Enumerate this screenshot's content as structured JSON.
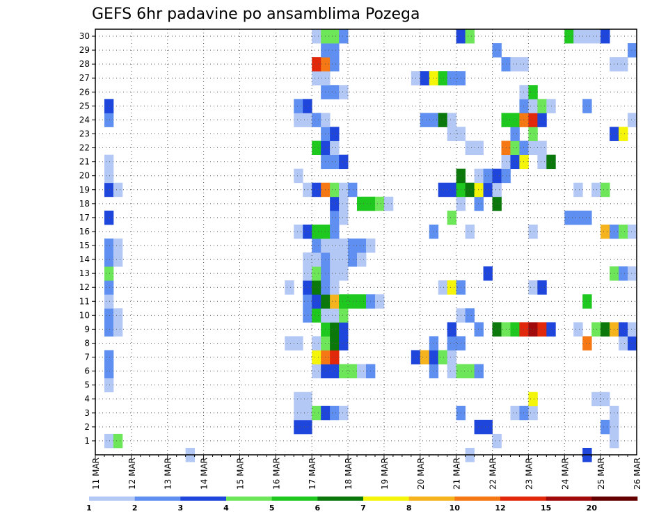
{
  "chart_data": {
    "type": "heatmap",
    "title": "GEFS 6hr padavine po ansamblima Pozega",
    "xlabel": "",
    "ylabel": "",
    "x_start": "11 MAR 00Z",
    "x_end": "26 MAR 00Z",
    "x_step_hours": 6,
    "x_ticks": [
      "11 MAR",
      "12 MAR",
      "13 MAR",
      "14 MAR",
      "15 MAR",
      "16 MAR",
      "17 MAR",
      "18 MAR",
      "19 MAR",
      "20 MAR",
      "21 MAR",
      "22 MAR",
      "23 MAR",
      "24 MAR",
      "25 MAR",
      "26 MAR"
    ],
    "y_ticks": [
      "1",
      "2",
      "3",
      "4",
      "5",
      "6",
      "7",
      "8",
      "9",
      "10",
      "11",
      "12",
      "13",
      "14",
      "15",
      "16",
      "17",
      "18",
      "19",
      "20",
      "21",
      "22",
      "23",
      "24",
      "25",
      "26",
      "27",
      "28",
      "29",
      "30"
    ],
    "members_range": [
      0,
      30
    ],
    "grid": true,
    "legend": {
      "placement": "bottom",
      "levels": [
        "1",
        "2",
        "3",
        "4",
        "5",
        "6",
        "7",
        "8",
        "10",
        "12",
        "15",
        "20"
      ],
      "colors": [
        "#b4c8f5",
        "#5f8ff0",
        "#1e46dc",
        "#6ee65a",
        "#1ec81e",
        "#0a780a",
        "#f5f50a",
        "#f5b41e",
        "#f57814",
        "#e1280a",
        "#a00a0a",
        "#640000"
      ]
    },
    "cells": [
      [
        0,
        10,
        1
      ],
      [
        0,
        41,
        1
      ],
      [
        0,
        54,
        3
      ],
      [
        1,
        1,
        1
      ],
      [
        1,
        2,
        4
      ],
      [
        1,
        44,
        1
      ],
      [
        1,
        57,
        1
      ],
      [
        2,
        22,
        3
      ],
      [
        2,
        23,
        3
      ],
      [
        2,
        42,
        3
      ],
      [
        2,
        43,
        3
      ],
      [
        2,
        56,
        2
      ],
      [
        2,
        57,
        1
      ],
      [
        3,
        22,
        1
      ],
      [
        3,
        23,
        1
      ],
      [
        3,
        24,
        4
      ],
      [
        3,
        25,
        3
      ],
      [
        3,
        26,
        2
      ],
      [
        3,
        27,
        1
      ],
      [
        3,
        40,
        2
      ],
      [
        3,
        46,
        1
      ],
      [
        3,
        47,
        2
      ],
      [
        3,
        48,
        1
      ],
      [
        3,
        57,
        1
      ],
      [
        4,
        22,
        1
      ],
      [
        4,
        23,
        1
      ],
      [
        4,
        48,
        7
      ],
      [
        4,
        55,
        1
      ],
      [
        4,
        56,
        1
      ],
      [
        5,
        1,
        1
      ],
      [
        6,
        1,
        2
      ],
      [
        6,
        24,
        1
      ],
      [
        6,
        25,
        3
      ],
      [
        6,
        26,
        3
      ],
      [
        6,
        27,
        4
      ],
      [
        6,
        28,
        4
      ],
      [
        6,
        29,
        1
      ],
      [
        6,
        30,
        2
      ],
      [
        6,
        37,
        2
      ],
      [
        6,
        39,
        1
      ],
      [
        6,
        40,
        4
      ],
      [
        6,
        41,
        4
      ],
      [
        6,
        42,
        2
      ],
      [
        7,
        1,
        2
      ],
      [
        7,
        24,
        7
      ],
      [
        7,
        25,
        9
      ],
      [
        7,
        26,
        10
      ],
      [
        7,
        35,
        3
      ],
      [
        7,
        36,
        8
      ],
      [
        7,
        37,
        3
      ],
      [
        7,
        38,
        4
      ],
      [
        7,
        39,
        1
      ],
      [
        8,
        21,
        1
      ],
      [
        8,
        22,
        1
      ],
      [
        8,
        24,
        1
      ],
      [
        8,
        25,
        4
      ],
      [
        8,
        26,
        6
      ],
      [
        8,
        27,
        3
      ],
      [
        8,
        37,
        2
      ],
      [
        8,
        39,
        2
      ],
      [
        8,
        40,
        2
      ],
      [
        8,
        54,
        9
      ],
      [
        8,
        58,
        1
      ],
      [
        8,
        59,
        3
      ],
      [
        9,
        1,
        2
      ],
      [
        9,
        2,
        1
      ],
      [
        9,
        25,
        5
      ],
      [
        9,
        26,
        6
      ],
      [
        9,
        27,
        3
      ],
      [
        9,
        39,
        3
      ],
      [
        9,
        42,
        2
      ],
      [
        9,
        44,
        6
      ],
      [
        9,
        45,
        4
      ],
      [
        9,
        46,
        5
      ],
      [
        9,
        47,
        10
      ],
      [
        9,
        48,
        11
      ],
      [
        9,
        49,
        10
      ],
      [
        9,
        50,
        3
      ],
      [
        9,
        53,
        1
      ],
      [
        9,
        55,
        4
      ],
      [
        9,
        56,
        6
      ],
      [
        9,
        57,
        8
      ],
      [
        9,
        58,
        3
      ],
      [
        9,
        59,
        1
      ],
      [
        10,
        1,
        2
      ],
      [
        10,
        2,
        1
      ],
      [
        10,
        23,
        2
      ],
      [
        10,
        24,
        5
      ],
      [
        10,
        25,
        1
      ],
      [
        10,
        26,
        1
      ],
      [
        10,
        27,
        4
      ],
      [
        10,
        40,
        1
      ],
      [
        10,
        41,
        2
      ],
      [
        11,
        1,
        1
      ],
      [
        11,
        23,
        2
      ],
      [
        11,
        24,
        3
      ],
      [
        11,
        25,
        6
      ],
      [
        11,
        26,
        8
      ],
      [
        11,
        27,
        5
      ],
      [
        11,
        28,
        5
      ],
      [
        11,
        29,
        5
      ],
      [
        11,
        30,
        2
      ],
      [
        11,
        31,
        1
      ],
      [
        11,
        54,
        5
      ],
      [
        12,
        1,
        2
      ],
      [
        12,
        21,
        1
      ],
      [
        12,
        23,
        3
      ],
      [
        12,
        24,
        6
      ],
      [
        12,
        25,
        2
      ],
      [
        12,
        26,
        1
      ],
      [
        12,
        38,
        1
      ],
      [
        12,
        39,
        7
      ],
      [
        12,
        40,
        2
      ],
      [
        12,
        48,
        1
      ],
      [
        12,
        49,
        3
      ],
      [
        13,
        1,
        4
      ],
      [
        13,
        23,
        1
      ],
      [
        13,
        24,
        4
      ],
      [
        13,
        25,
        2
      ],
      [
        13,
        26,
        1
      ],
      [
        13,
        27,
        1
      ],
      [
        13,
        43,
        3
      ],
      [
        13,
        57,
        4
      ],
      [
        13,
        58,
        2
      ],
      [
        13,
        59,
        1
      ],
      [
        14,
        1,
        2
      ],
      [
        14,
        2,
        1
      ],
      [
        14,
        23,
        1
      ],
      [
        14,
        24,
        1
      ],
      [
        14,
        25,
        2
      ],
      [
        14,
        26,
        1
      ],
      [
        14,
        27,
        1
      ],
      [
        14,
        28,
        2
      ],
      [
        14,
        29,
        1
      ],
      [
        15,
        1,
        2
      ],
      [
        15,
        2,
        1
      ],
      [
        15,
        24,
        2
      ],
      [
        15,
        25,
        1
      ],
      [
        15,
        26,
        1
      ],
      [
        15,
        27,
        1
      ],
      [
        15,
        28,
        2
      ],
      [
        15,
        29,
        2
      ],
      [
        15,
        30,
        1
      ],
      [
        16,
        22,
        1
      ],
      [
        16,
        23,
        3
      ],
      [
        16,
        24,
        5
      ],
      [
        16,
        25,
        5
      ],
      [
        16,
        26,
        2
      ],
      [
        16,
        37,
        2
      ],
      [
        16,
        41,
        1
      ],
      [
        16,
        48,
        1
      ],
      [
        16,
        56,
        8
      ],
      [
        16,
        57,
        2
      ],
      [
        16,
        58,
        4
      ],
      [
        16,
        59,
        1
      ],
      [
        17,
        1,
        3
      ],
      [
        17,
        26,
        2
      ],
      [
        17,
        27,
        1
      ],
      [
        17,
        39,
        4
      ],
      [
        17,
        52,
        2
      ],
      [
        17,
        53,
        2
      ],
      [
        17,
        54,
        2
      ],
      [
        18,
        26,
        3
      ],
      [
        18,
        27,
        1
      ],
      [
        18,
        29,
        5
      ],
      [
        18,
        30,
        5
      ],
      [
        18,
        31,
        4
      ],
      [
        18,
        32,
        1
      ],
      [
        18,
        40,
        1
      ],
      [
        18,
        42,
        2
      ],
      [
        18,
        44,
        6
      ],
      [
        19,
        1,
        3
      ],
      [
        19,
        2,
        1
      ],
      [
        19,
        23,
        1
      ],
      [
        19,
        24,
        3
      ],
      [
        19,
        25,
        9
      ],
      [
        19,
        26,
        4
      ],
      [
        19,
        27,
        1
      ],
      [
        19,
        28,
        2
      ],
      [
        19,
        38,
        3
      ],
      [
        19,
        39,
        3
      ],
      [
        19,
        40,
        5
      ],
      [
        19,
        41,
        6
      ],
      [
        19,
        42,
        7
      ],
      [
        19,
        43,
        3
      ],
      [
        19,
        44,
        1
      ],
      [
        19,
        53,
        1
      ],
      [
        19,
        55,
        1
      ],
      [
        19,
        56,
        4
      ],
      [
        20,
        1,
        1
      ],
      [
        20,
        22,
        1
      ],
      [
        20,
        40,
        6
      ],
      [
        20,
        42,
        1
      ],
      [
        20,
        43,
        2
      ],
      [
        20,
        44,
        3
      ],
      [
        20,
        45,
        2
      ],
      [
        21,
        1,
        1
      ],
      [
        21,
        25,
        2
      ],
      [
        21,
        26,
        2
      ],
      [
        21,
        27,
        3
      ],
      [
        21,
        45,
        1
      ],
      [
        21,
        46,
        3
      ],
      [
        21,
        47,
        7
      ],
      [
        21,
        49,
        1
      ],
      [
        21,
        50,
        6
      ],
      [
        22,
        24,
        5
      ],
      [
        22,
        25,
        3
      ],
      [
        22,
        26,
        1
      ],
      [
        22,
        41,
        1
      ],
      [
        22,
        42,
        1
      ],
      [
        22,
        45,
        9
      ],
      [
        22,
        46,
        4
      ],
      [
        22,
        47,
        2
      ],
      [
        22,
        48,
        1
      ],
      [
        22,
        49,
        1
      ],
      [
        23,
        25,
        2
      ],
      [
        23,
        26,
        3
      ],
      [
        23,
        39,
        1
      ],
      [
        23,
        40,
        1
      ],
      [
        23,
        46,
        2
      ],
      [
        23,
        48,
        4
      ],
      [
        23,
        57,
        3
      ],
      [
        23,
        58,
        7
      ],
      [
        24,
        1,
        2
      ],
      [
        24,
        22,
        1
      ],
      [
        24,
        23,
        1
      ],
      [
        24,
        24,
        2
      ],
      [
        24,
        25,
        1
      ],
      [
        24,
        36,
        2
      ],
      [
        24,
        37,
        2
      ],
      [
        24,
        38,
        6
      ],
      [
        24,
        39,
        1
      ],
      [
        24,
        45,
        5
      ],
      [
        24,
        46,
        5
      ],
      [
        24,
        47,
        9
      ],
      [
        24,
        48,
        10
      ],
      [
        24,
        49,
        3
      ],
      [
        24,
        59,
        1
      ],
      [
        25,
        1,
        3
      ],
      [
        25,
        22,
        2
      ],
      [
        25,
        23,
        3
      ],
      [
        25,
        47,
        2
      ],
      [
        25,
        48,
        1
      ],
      [
        25,
        49,
        4
      ],
      [
        25,
        50,
        1
      ],
      [
        25,
        54,
        2
      ],
      [
        26,
        25,
        2
      ],
      [
        26,
        26,
        2
      ],
      [
        26,
        27,
        1
      ],
      [
        26,
        47,
        1
      ],
      [
        26,
        48,
        5
      ],
      [
        27,
        24,
        1
      ],
      [
        27,
        25,
        1
      ],
      [
        27,
        35,
        1
      ],
      [
        27,
        36,
        3
      ],
      [
        27,
        37,
        7
      ],
      [
        27,
        38,
        5
      ],
      [
        27,
        39,
        2
      ],
      [
        27,
        40,
        2
      ],
      [
        28,
        24,
        10
      ],
      [
        28,
        25,
        9
      ],
      [
        28,
        26,
        2
      ],
      [
        28,
        45,
        2
      ],
      [
        28,
        46,
        1
      ],
      [
        28,
        47,
        1
      ],
      [
        28,
        57,
        1
      ],
      [
        28,
        58,
        1
      ],
      [
        29,
        25,
        2
      ],
      [
        29,
        26,
        2
      ],
      [
        29,
        44,
        2
      ],
      [
        29,
        59,
        2
      ],
      [
        30,
        24,
        1
      ],
      [
        30,
        25,
        4
      ],
      [
        30,
        26,
        4
      ],
      [
        30,
        27,
        2
      ],
      [
        30,
        40,
        3
      ],
      [
        30,
        41,
        4
      ],
      [
        30,
        52,
        5
      ],
      [
        30,
        53,
        1
      ],
      [
        30,
        54,
        1
      ],
      [
        30,
        55,
        1
      ],
      [
        30,
        56,
        3
      ]
    ]
  }
}
